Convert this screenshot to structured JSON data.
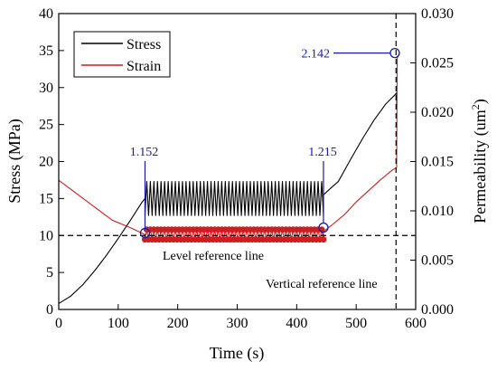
{
  "chart_data": {
    "type": "line",
    "xlabel": "Time (s)",
    "ylabel": "Stress (MPa)",
    "y2label_base": "Permeability (um",
    "y2label_sup": "2",
    "y2label_end": ")",
    "xlim": [
      0,
      600
    ],
    "ylim": [
      0,
      40
    ],
    "y2lim": [
      0,
      0.03
    ],
    "x_ticks": [
      0,
      100,
      200,
      300,
      400,
      500,
      600
    ],
    "y_ticks": [
      0,
      5,
      10,
      15,
      20,
      25,
      30,
      35,
      40
    ],
    "y2_ticks": [
      "0.000",
      "0.005",
      "0.010",
      "0.015",
      "0.020",
      "0.025",
      "0.030"
    ],
    "legend": {
      "position": "top-left",
      "entries": [
        "Stress",
        "Strain"
      ]
    },
    "series": [
      {
        "name": "Stress",
        "axis": "left",
        "color": "#000000",
        "points": [
          [
            0,
            0.8
          ],
          [
            20,
            1.8
          ],
          [
            40,
            3.3
          ],
          [
            60,
            5.2
          ],
          [
            80,
            7.3
          ],
          [
            100,
            9.6
          ],
          [
            120,
            12.0
          ],
          [
            140,
            14.5
          ],
          [
            145,
            15.0
          ]
        ],
        "cyclic": {
          "x_start": 145,
          "x_end": 445,
          "min": 12.7,
          "max": 17.3,
          "cycles": 50
        },
        "points_after": [
          [
            445,
            15.5
          ],
          [
            460,
            16.6
          ],
          [
            470,
            17.3
          ],
          [
            490,
            20.2
          ],
          [
            510,
            23.0
          ],
          [
            530,
            25.6
          ],
          [
            550,
            27.8
          ],
          [
            565,
            29.0
          ],
          [
            568,
            29.3
          ],
          [
            568,
            27.2
          ]
        ]
      },
      {
        "name": "Strain",
        "axis": "right",
        "color": "#cc1f1f",
        "points": [
          [
            0,
            0.0131
          ],
          [
            30,
            0.01175
          ],
          [
            60,
            0.0104
          ],
          [
            90,
            0.00905
          ],
          [
            120,
            0.0083
          ],
          [
            145,
            0.0076
          ]
        ],
        "cyclic": {
          "x_start": 145,
          "x_end": 445,
          "min": 0.0071,
          "max": 0.0081,
          "cycles": 50
        },
        "points_after": [
          [
            445,
            0.0079
          ],
          [
            460,
            0.0086
          ],
          [
            480,
            0.0096
          ],
          [
            500,
            0.0109
          ],
          [
            520,
            0.012
          ],
          [
            540,
            0.0131
          ],
          [
            560,
            0.0141
          ],
          [
            568,
            0.0144
          ],
          [
            569,
            0.0255
          ],
          [
            572,
            0.0259
          ]
        ]
      }
    ],
    "annotations": [
      {
        "label": "1.152",
        "x": 145,
        "y2": 0.00775
      },
      {
        "label": "1.215",
        "x": 445,
        "y2": 0.0083
      },
      {
        "label": "2.142",
        "x": 565,
        "y2": 0.026
      }
    ],
    "reference_lines": {
      "level": {
        "label": "Level reference line",
        "y": 10
      },
      "vertical": {
        "label": "Vertical reference line",
        "x": 567
      }
    }
  }
}
